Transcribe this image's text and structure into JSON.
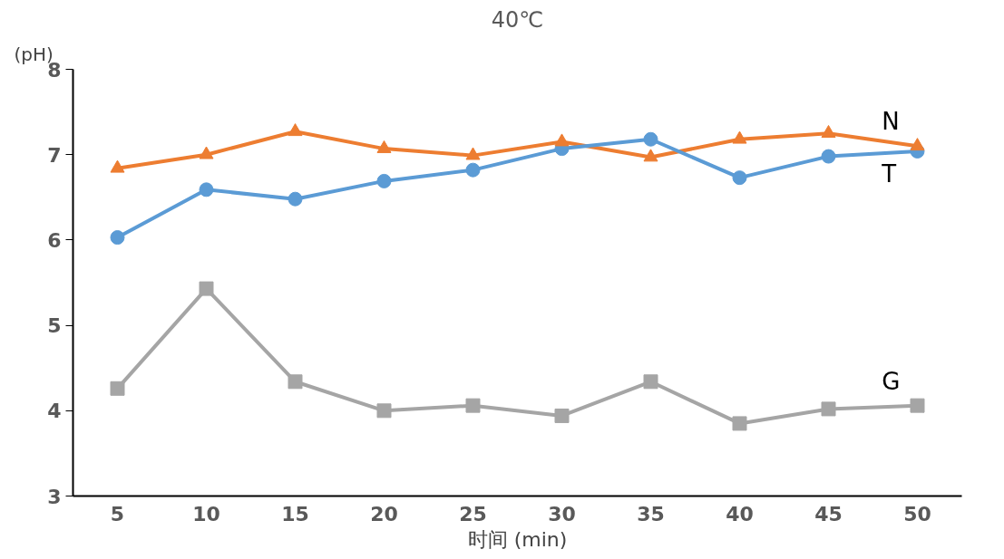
{
  "chart_data": {
    "type": "line",
    "title": "40℃",
    "ylabel": "(pH)",
    "xlabel": "时间 (min)",
    "categories": [
      "5",
      "10",
      "15",
      "20",
      "25",
      "30",
      "35",
      "40",
      "45",
      "50"
    ],
    "ylim": [
      3,
      8
    ],
    "yticks": [
      3,
      4,
      5,
      6,
      7,
      8
    ],
    "grid": false,
    "series": [
      {
        "name": "N",
        "color": "#ed7d31",
        "marker": "triangle",
        "values": [
          6.84,
          7.0,
          7.27,
          7.07,
          6.99,
          7.15,
          6.97,
          7.18,
          7.25,
          7.1
        ]
      },
      {
        "name": "T",
        "color": "#5b9bd5",
        "marker": "circle",
        "values": [
          6.03,
          6.59,
          6.48,
          6.69,
          6.82,
          7.07,
          7.18,
          6.73,
          6.98,
          7.04
        ]
      },
      {
        "name": "G",
        "color": "#a5a5a5",
        "marker": "square",
        "values": [
          4.26,
          5.43,
          4.34,
          4.0,
          4.06,
          3.94,
          4.34,
          3.85,
          4.02,
          4.06
        ]
      }
    ]
  }
}
